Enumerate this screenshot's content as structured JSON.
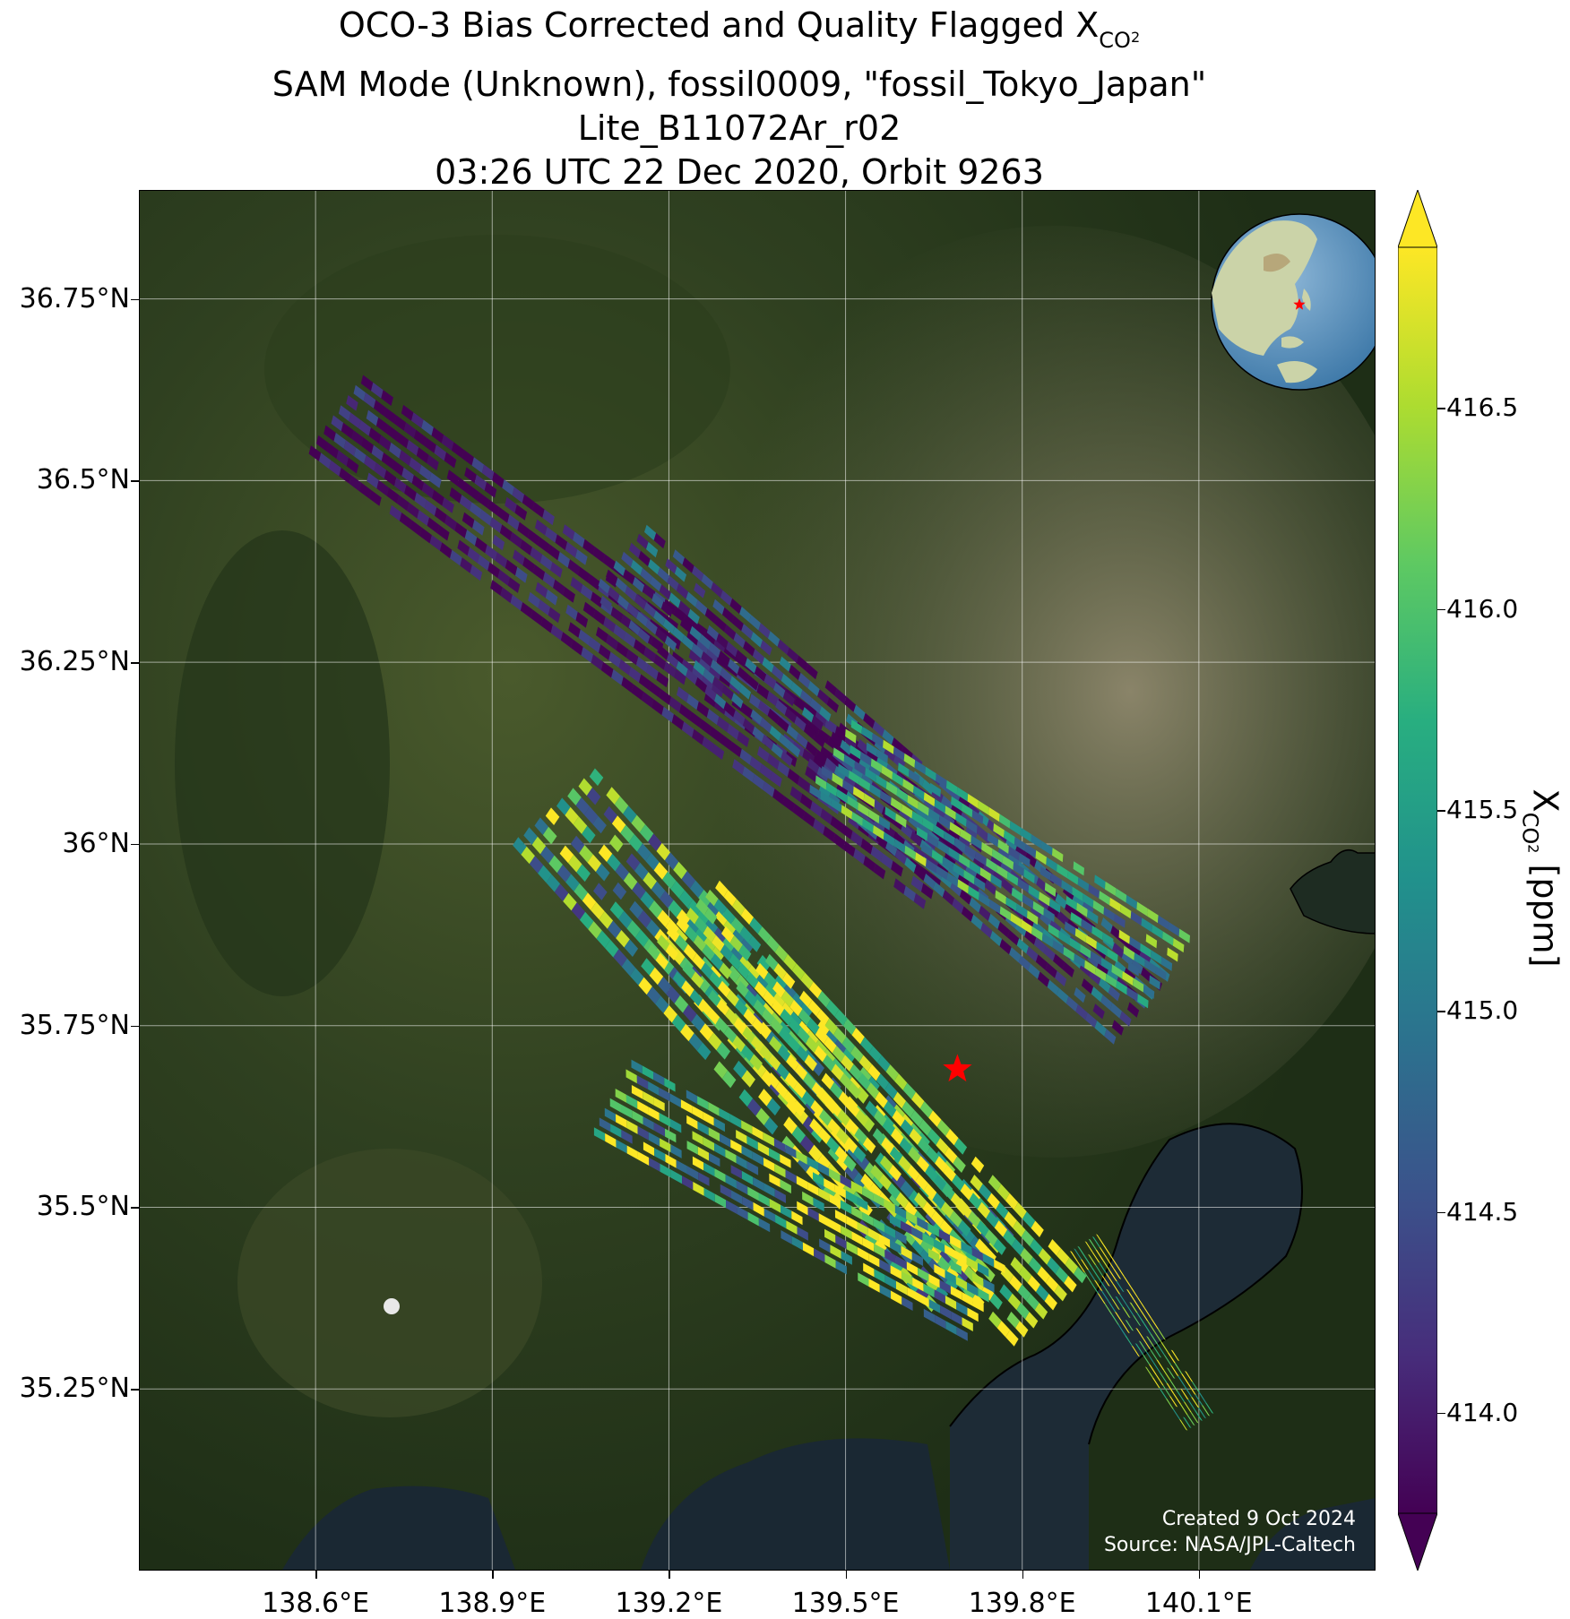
{
  "title": {
    "line1_prefix": "OCO-3 Bias Corrected and Quality Flagged X",
    "line1_sub": "CO",
    "line1_subsub": "2",
    "line2": "SAM Mode (Unknown), fossil0009, \"fossil_Tokyo_Japan\"",
    "line3": "Lite_B11072Ar_r02",
    "line4": "03:26 UTC 22 Dec 2020, Orbit 9263"
  },
  "map": {
    "lon_range": [
      138.3,
      140.4
    ],
    "lat_range": [
      35.0,
      36.9
    ],
    "lat_ticks": [
      {
        "value": 36.75,
        "label": "36.75°N"
      },
      {
        "value": 36.5,
        "label": "36.5°N"
      },
      {
        "value": 36.25,
        "label": "36.25°N"
      },
      {
        "value": 36.0,
        "label": "36°N"
      },
      {
        "value": 35.75,
        "label": "35.75°N"
      },
      {
        "value": 35.5,
        "label": "35.5°N"
      },
      {
        "value": 35.25,
        "label": "35.25°N"
      }
    ],
    "lon_ticks": [
      {
        "value": 138.6,
        "label": "138.6°E"
      },
      {
        "value": 138.9,
        "label": "138.9°E"
      },
      {
        "value": 139.2,
        "label": "139.2°E"
      },
      {
        "value": 139.5,
        "label": "139.5°E"
      },
      {
        "value": 139.8,
        "label": "139.8°E"
      },
      {
        "value": 140.1,
        "label": "140.1°E"
      }
    ],
    "target": {
      "name": "fossil_Tokyo_Japan",
      "lon": 139.69,
      "lat": 35.69,
      "marker": "red-star",
      "color": "#ff0000"
    },
    "credit_line1": "Created 9 Oct 2024",
    "credit_line2": "Source: NASA/JPL-Caltech",
    "inset": "globe-locator-east-asia"
  },
  "colorbar": {
    "colormap": "viridis",
    "min": 413.75,
    "max": 416.9,
    "extend": "both",
    "ticks": [
      {
        "value": 414.0,
        "label": "414.0"
      },
      {
        "value": 414.5,
        "label": "414.5"
      },
      {
        "value": 415.0,
        "label": "415.0"
      },
      {
        "value": 415.5,
        "label": "415.5"
      },
      {
        "value": 416.0,
        "label": "416.0"
      },
      {
        "value": 416.5,
        "label": "416.5"
      }
    ],
    "label_prefix": "X",
    "label_sub": "CO",
    "label_subsub": "2",
    "label_suffix": " [ppm]"
  },
  "soundings": {
    "units": "ppm",
    "swaths": [
      {
        "name": "swath-1",
        "start": [
          138.63,
          36.59
        ],
        "end": [
          139.68,
          35.96
        ],
        "across_width_deg": 0.17,
        "mean_xco2": 414.1,
        "spread": 0.35
      },
      {
        "name": "swath-2",
        "start": [
          139.11,
          36.39
        ],
        "end": [
          140.0,
          35.77
        ],
        "across_width_deg": 0.16,
        "mean_xco2": 414.5,
        "spread": 0.5
      },
      {
        "name": "swath-3",
        "start": [
          139.47,
          36.12
        ],
        "end": [
          140.05,
          35.82
        ],
        "across_width_deg": 0.15,
        "mean_xco2": 415.6,
        "spread": 0.6
      },
      {
        "name": "swath-4",
        "start": [
          139.0,
          36.05
        ],
        "end": [
          139.72,
          35.4
        ],
        "across_width_deg": 0.2,
        "mean_xco2": 415.7,
        "spread": 0.8
      },
      {
        "name": "swath-5",
        "start": [
          139.22,
          35.9
        ],
        "end": [
          139.85,
          35.35
        ],
        "across_width_deg": 0.18,
        "mean_xco2": 416.4,
        "spread": 0.6
      },
      {
        "name": "swath-6",
        "start": [
          139.1,
          35.65
        ],
        "end": [
          139.75,
          35.36
        ],
        "across_width_deg": 0.15,
        "mean_xco2": 415.9,
        "spread": 0.9
      },
      {
        "name": "swath-7",
        "start": [
          139.9,
          35.45
        ],
        "end": [
          140.1,
          35.2
        ],
        "across_width_deg": 0.06,
        "mean_xco2": 416.3,
        "spread": 0.6
      }
    ]
  }
}
